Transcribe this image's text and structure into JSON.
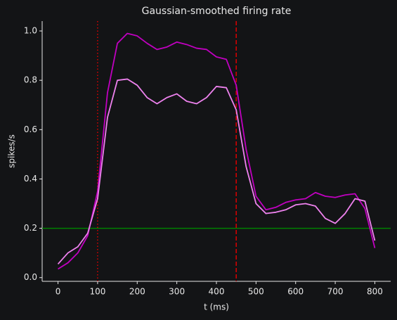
{
  "chart_data": {
    "type": "line",
    "title": "Gaussian-smoothed firing rate",
    "xlabel": "t (ms)",
    "ylabel": "spikes/s",
    "x": [
      0,
      25,
      50,
      75,
      100,
      125,
      150,
      175,
      200,
      225,
      250,
      275,
      300,
      325,
      350,
      375,
      400,
      425,
      450,
      475,
      500,
      525,
      550,
      575,
      600,
      625,
      650,
      675,
      700,
      725,
      750,
      775,
      800
    ],
    "series": [
      {
        "color": "#c000c0",
        "values": [
          0.035,
          0.06,
          0.1,
          0.17,
          0.35,
          0.75,
          0.95,
          0.99,
          0.98,
          0.95,
          0.925,
          0.935,
          0.955,
          0.945,
          0.93,
          0.925,
          0.895,
          0.885,
          0.78,
          0.52,
          0.33,
          0.275,
          0.285,
          0.305,
          0.315,
          0.32,
          0.345,
          0.33,
          0.325,
          0.335,
          0.34,
          0.28,
          0.12
        ]
      },
      {
        "color": "#ee82ee",
        "values": [
          0.055,
          0.1,
          0.125,
          0.18,
          0.32,
          0.65,
          0.8,
          0.805,
          0.78,
          0.73,
          0.705,
          0.73,
          0.745,
          0.715,
          0.705,
          0.73,
          0.775,
          0.77,
          0.68,
          0.45,
          0.3,
          0.26,
          0.265,
          0.275,
          0.295,
          0.3,
          0.29,
          0.24,
          0.22,
          0.26,
          0.32,
          0.31,
          0.15
        ]
      }
    ],
    "vlines": [
      {
        "x": 100,
        "color": "#dd0000",
        "style": "dotted"
      },
      {
        "x": 450,
        "color": "#dd0000",
        "style": "dashed"
      }
    ],
    "hlines": [
      {
        "y": 0.2,
        "color": "#008000",
        "style": "solid"
      }
    ],
    "xlim": [
      -40,
      840
    ],
    "xticks": [
      0,
      100,
      200,
      300,
      400,
      500,
      600,
      700,
      800
    ],
    "ylim": [
      -0.015,
      1.04
    ],
    "yticks": [
      {
        "value": 0,
        "label": "0.0"
      },
      0.2,
      0.4,
      0.6,
      0.8,
      {
        "value": 1,
        "label": "1.0"
      }
    ]
  }
}
